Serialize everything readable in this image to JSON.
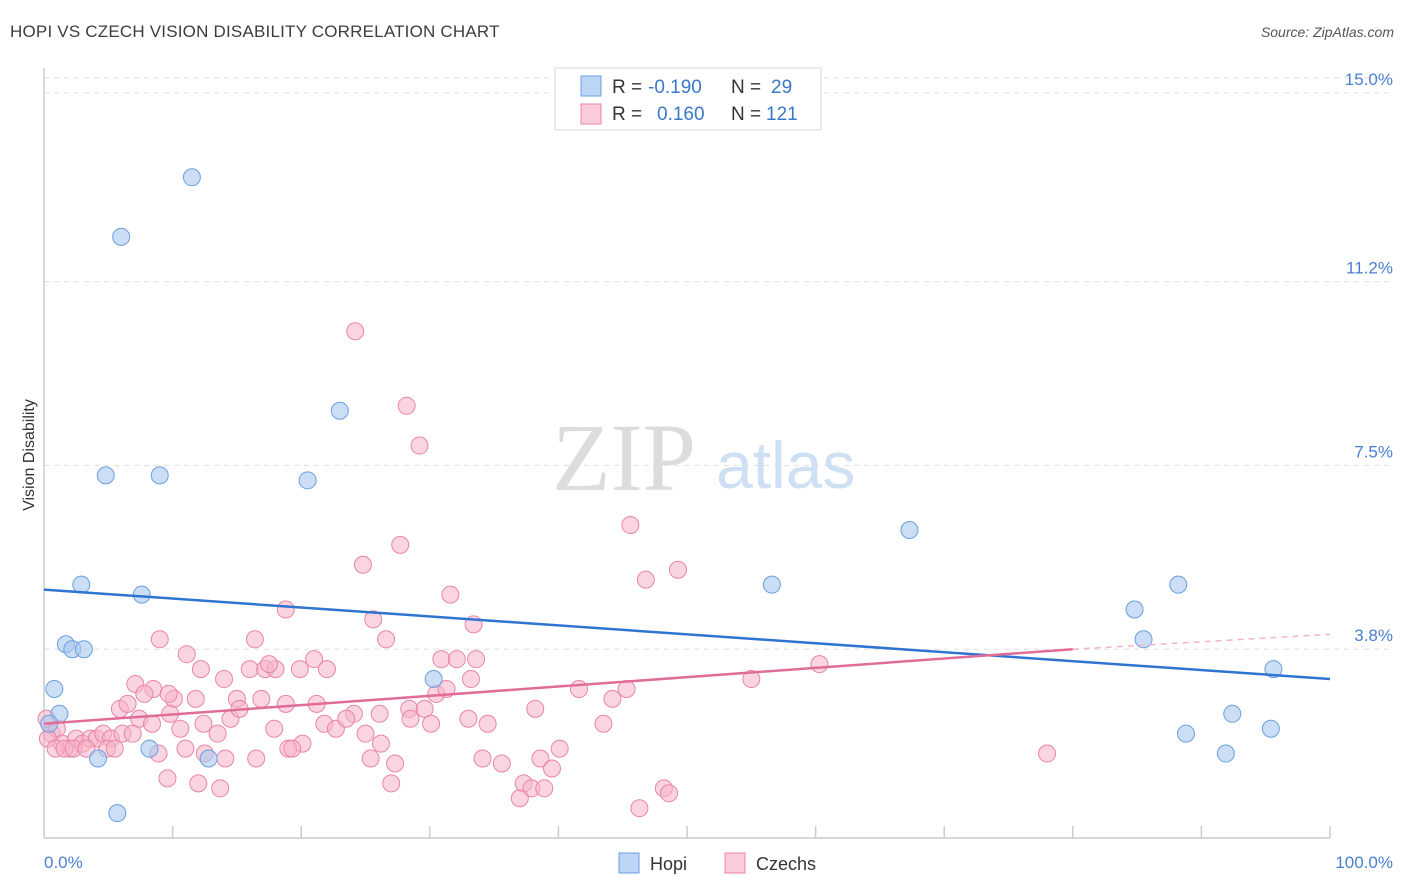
{
  "header": {
    "title": "HOPI VS CZECH VISION DISABILITY CORRELATION CHART",
    "source": "Source: ZipAtlas.com"
  },
  "watermark": {
    "zip": "ZIP",
    "atlas": "atlas"
  },
  "legend": {
    "r_label": "R =",
    "n_label": "N =",
    "hopi": {
      "r": "-0.190",
      "n": "29",
      "color": "#a8c8f0"
    },
    "czechs": {
      "r": "0.160",
      "n": "121",
      "color": "#f5b3c8"
    }
  },
  "bottom_legend": {
    "hopi": "Hopi",
    "czechs": "Czechs"
  },
  "chart_data": {
    "type": "scatter",
    "title": "HOPI VS CZECH VISION DISABILITY CORRELATION CHART",
    "xlabel": "",
    "ylabel": "Vision Disability",
    "xlim": [
      0,
      100
    ],
    "ylim": [
      0,
      15.5
    ],
    "x_tick_labels": [
      "0.0%",
      "100.0%"
    ],
    "y_ticks": [
      3.8,
      7.5,
      11.2,
      15.0
    ],
    "y_tick_labels": [
      "3.8%",
      "7.5%",
      "11.2%",
      "15.0%"
    ],
    "grid": true,
    "legend_position": "top-center",
    "series": [
      {
        "name": "Hopi",
        "color": "#a8c8f0",
        "stroke": "#6a9fe0",
        "trend_color": "#2f74d0",
        "trend": {
          "x": [
            0,
            100
          ],
          "y": [
            5.0,
            3.2
          ]
        },
        "points": [
          [
            11.5,
            13.3
          ],
          [
            6.0,
            12.1
          ],
          [
            23.0,
            8.6
          ],
          [
            4.8,
            7.3
          ],
          [
            9.0,
            7.3
          ],
          [
            20.5,
            7.2
          ],
          [
            67.3,
            6.2
          ],
          [
            2.9,
            5.1
          ],
          [
            7.6,
            4.9
          ],
          [
            56.6,
            5.1
          ],
          [
            88.2,
            5.1
          ],
          [
            84.8,
            4.6
          ],
          [
            1.7,
            3.9
          ],
          [
            2.2,
            3.8
          ],
          [
            3.1,
            3.8
          ],
          [
            85.5,
            4.0
          ],
          [
            0.8,
            3.0
          ],
          [
            30.3,
            3.2
          ],
          [
            95.6,
            3.4
          ],
          [
            1.2,
            2.5
          ],
          [
            0.4,
            2.3
          ],
          [
            92.4,
            2.5
          ],
          [
            88.8,
            2.1
          ],
          [
            95.4,
            2.2
          ],
          [
            8.2,
            1.8
          ],
          [
            4.2,
            1.6
          ],
          [
            12.8,
            1.6
          ],
          [
            91.9,
            1.7
          ],
          [
            5.7,
            0.5
          ]
        ]
      },
      {
        "name": "Czechs",
        "color": "#f5b3c8",
        "stroke": "#e985a6",
        "trend_color": "#e06d97",
        "trend": {
          "x": [
            0,
            80
          ],
          "y": [
            2.3,
            3.8
          ]
        },
        "trend_dashed": {
          "x": [
            80,
            100
          ],
          "y": [
            3.8,
            4.1
          ]
        },
        "points": [
          [
            24.2,
            10.2
          ],
          [
            28.2,
            8.7
          ],
          [
            29.2,
            7.9
          ],
          [
            45.6,
            6.3
          ],
          [
            27.7,
            5.9
          ],
          [
            24.8,
            5.5
          ],
          [
            49.3,
            5.4
          ],
          [
            46.8,
            5.2
          ],
          [
            31.6,
            4.9
          ],
          [
            18.8,
            4.6
          ],
          [
            25.6,
            4.4
          ],
          [
            33.4,
            4.3
          ],
          [
            9.0,
            4.0
          ],
          [
            16.4,
            4.0
          ],
          [
            26.6,
            4.0
          ],
          [
            11.1,
            3.7
          ],
          [
            30.9,
            3.6
          ],
          [
            32.1,
            3.6
          ],
          [
            33.6,
            3.6
          ],
          [
            12.2,
            3.4
          ],
          [
            16.0,
            3.4
          ],
          [
            17.2,
            3.4
          ],
          [
            18.0,
            3.4
          ],
          [
            19.9,
            3.4
          ],
          [
            21.0,
            3.6
          ],
          [
            22.0,
            3.4
          ],
          [
            17.5,
            3.5
          ],
          [
            14.0,
            3.2
          ],
          [
            7.1,
            3.1
          ],
          [
            8.5,
            3.0
          ],
          [
            10.1,
            2.8
          ],
          [
            11.8,
            2.8
          ],
          [
            5.9,
            2.6
          ],
          [
            6.5,
            2.7
          ],
          [
            7.8,
            2.9
          ],
          [
            9.7,
            2.9
          ],
          [
            15.0,
            2.8
          ],
          [
            16.9,
            2.8
          ],
          [
            18.8,
            2.7
          ],
          [
            21.2,
            2.7
          ],
          [
            24.1,
            2.5
          ],
          [
            26.1,
            2.5
          ],
          [
            28.4,
            2.6
          ],
          [
            29.6,
            2.6
          ],
          [
            30.5,
            2.9
          ],
          [
            31.3,
            3.0
          ],
          [
            33.2,
            3.2
          ],
          [
            41.6,
            3.0
          ],
          [
            44.2,
            2.8
          ],
          [
            45.3,
            3.0
          ],
          [
            55.0,
            3.2
          ],
          [
            60.3,
            3.5
          ],
          [
            0.2,
            2.4
          ],
          [
            0.6,
            2.1
          ],
          [
            1.0,
            2.2
          ],
          [
            1.4,
            1.9
          ],
          [
            2.0,
            1.8
          ],
          [
            2.5,
            2.0
          ],
          [
            3.0,
            1.9
          ],
          [
            3.6,
            2.0
          ],
          [
            4.1,
            2.0
          ],
          [
            4.6,
            2.1
          ],
          [
            5.2,
            2.0
          ],
          [
            6.1,
            2.1
          ],
          [
            6.9,
            2.1
          ],
          [
            7.4,
            2.4
          ],
          [
            8.4,
            2.3
          ],
          [
            9.8,
            2.5
          ],
          [
            10.6,
            2.2
          ],
          [
            12.4,
            2.3
          ],
          [
            13.5,
            2.1
          ],
          [
            14.5,
            2.4
          ],
          [
            15.2,
            2.6
          ],
          [
            17.9,
            2.2
          ],
          [
            19.0,
            1.8
          ],
          [
            20.1,
            1.9
          ],
          [
            21.8,
            2.3
          ],
          [
            22.7,
            2.2
          ],
          [
            23.5,
            2.4
          ],
          [
            25.0,
            2.1
          ],
          [
            26.2,
            1.9
          ],
          [
            28.5,
            2.4
          ],
          [
            30.1,
            2.3
          ],
          [
            33.0,
            2.4
          ],
          [
            34.5,
            2.3
          ],
          [
            38.2,
            2.6
          ],
          [
            43.5,
            2.3
          ],
          [
            40.1,
            1.8
          ],
          [
            0.3,
            2.0
          ],
          [
            0.9,
            1.8
          ],
          [
            1.6,
            1.8
          ],
          [
            2.3,
            1.8
          ],
          [
            3.3,
            1.8
          ],
          [
            4.9,
            1.8
          ],
          [
            5.5,
            1.8
          ],
          [
            8.9,
            1.7
          ],
          [
            11.0,
            1.8
          ],
          [
            12.5,
            1.7
          ],
          [
            14.1,
            1.6
          ],
          [
            16.5,
            1.6
          ],
          [
            19.3,
            1.8
          ],
          [
            25.4,
            1.6
          ],
          [
            27.3,
            1.5
          ],
          [
            34.1,
            1.6
          ],
          [
            35.6,
            1.5
          ],
          [
            38.6,
            1.6
          ],
          [
            39.5,
            1.4
          ],
          [
            48.2,
            1.0
          ],
          [
            48.6,
            0.9
          ],
          [
            37.3,
            1.1
          ],
          [
            37.9,
            1.0
          ],
          [
            38.9,
            1.0
          ],
          [
            12.0,
            1.1
          ],
          [
            13.7,
            1.0
          ],
          [
            9.6,
            1.2
          ],
          [
            27.0,
            1.1
          ],
          [
            37.0,
            0.8
          ],
          [
            78.0,
            1.7
          ],
          [
            46.3,
            0.6
          ]
        ]
      }
    ]
  }
}
